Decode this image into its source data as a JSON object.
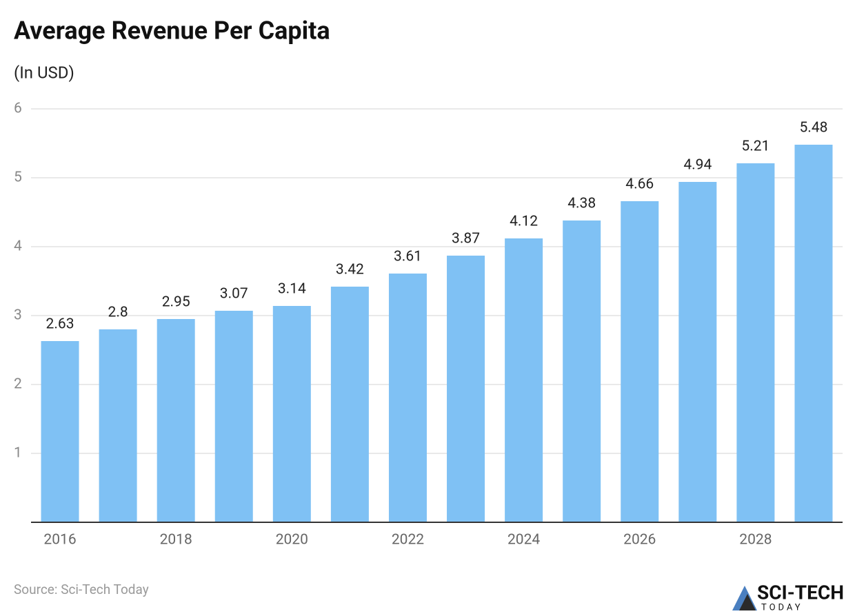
{
  "chart_data": {
    "type": "bar",
    "title": "Average Revenue Per Capita",
    "subtitle": "(In USD)",
    "categories": [
      "2016",
      null,
      "2018",
      null,
      "2020",
      null,
      "2022",
      null,
      "2024",
      null,
      "2026",
      null,
      "2028",
      null
    ],
    "values": [
      2.63,
      2.8,
      2.95,
      3.07,
      3.14,
      3.42,
      3.61,
      3.87,
      4.12,
      4.38,
      4.66,
      4.94,
      5.21,
      5.48
    ],
    "color": "#7fc1f4",
    "ylim": [
      0,
      6
    ],
    "yticks": [
      1,
      2,
      3,
      4,
      5,
      6
    ],
    "grid": true,
    "source": "Source: Sci-Tech Today"
  },
  "logo": {
    "text": "SCI-TECH",
    "subtext": "TODAY"
  }
}
